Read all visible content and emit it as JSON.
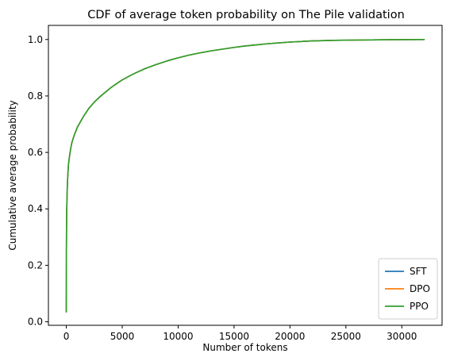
{
  "chart_data": {
    "type": "line",
    "title": "CDF of average token probability on The Pile validation",
    "xlabel": "Number of tokens",
    "ylabel": "Cumulative average probability",
    "xlim": [
      -1600,
      33600
    ],
    "ylim": [
      -0.0125,
      1.05
    ],
    "xticks": [
      0,
      5000,
      10000,
      15000,
      20000,
      25000,
      30000
    ],
    "xtick_labels": [
      "0",
      "5000",
      "10000",
      "15000",
      "20000",
      "25000",
      "30000"
    ],
    "yticks": [
      0.0,
      0.2,
      0.4,
      0.6,
      0.8,
      1.0
    ],
    "ytick_labels": [
      "0.0",
      "0.2",
      "0.4",
      "0.6",
      "0.8",
      "1.0"
    ],
    "grid": false,
    "legend_position": "bottom-right",
    "x": [
      0,
      5,
      10,
      20,
      40,
      70,
      100,
      150,
      200,
      300,
      400,
      500,
      700,
      1000,
      1500,
      2000,
      2500,
      3000,
      4000,
      5000,
      6000,
      7000,
      8000,
      9000,
      10000,
      11000,
      12000,
      13000,
      14000,
      15000,
      16000,
      17000,
      18000,
      19000,
      20000,
      22000,
      24000,
      26000,
      28000,
      30000,
      32000
    ],
    "series": [
      {
        "name": "SFT",
        "color": "#1f77b4",
        "values": [
          0.035,
          0.15,
          0.25,
          0.33,
          0.4,
          0.45,
          0.49,
          0.53,
          0.56,
          0.59,
          0.615,
          0.635,
          0.66,
          0.69,
          0.725,
          0.755,
          0.778,
          0.797,
          0.83,
          0.857,
          0.878,
          0.896,
          0.911,
          0.924,
          0.935,
          0.945,
          0.953,
          0.96,
          0.966,
          0.972,
          0.977,
          0.981,
          0.985,
          0.988,
          0.991,
          0.995,
          0.997,
          0.998,
          0.999,
          0.9995,
          1.0
        ]
      },
      {
        "name": "DPO",
        "color": "#ff7f0e",
        "values": [
          0.035,
          0.15,
          0.25,
          0.33,
          0.4,
          0.45,
          0.49,
          0.53,
          0.56,
          0.59,
          0.615,
          0.635,
          0.66,
          0.69,
          0.725,
          0.755,
          0.778,
          0.797,
          0.83,
          0.857,
          0.878,
          0.896,
          0.911,
          0.924,
          0.935,
          0.945,
          0.953,
          0.96,
          0.966,
          0.972,
          0.977,
          0.981,
          0.985,
          0.988,
          0.991,
          0.995,
          0.997,
          0.998,
          0.999,
          0.9995,
          1.0
        ]
      },
      {
        "name": "PPO",
        "color": "#2ca02c",
        "values": [
          0.035,
          0.15,
          0.25,
          0.33,
          0.4,
          0.45,
          0.49,
          0.53,
          0.56,
          0.59,
          0.615,
          0.635,
          0.66,
          0.69,
          0.725,
          0.755,
          0.778,
          0.797,
          0.83,
          0.857,
          0.878,
          0.896,
          0.911,
          0.924,
          0.935,
          0.945,
          0.953,
          0.96,
          0.966,
          0.972,
          0.977,
          0.981,
          0.985,
          0.988,
          0.991,
          0.995,
          0.997,
          0.998,
          0.999,
          0.9995,
          1.0
        ]
      }
    ]
  }
}
